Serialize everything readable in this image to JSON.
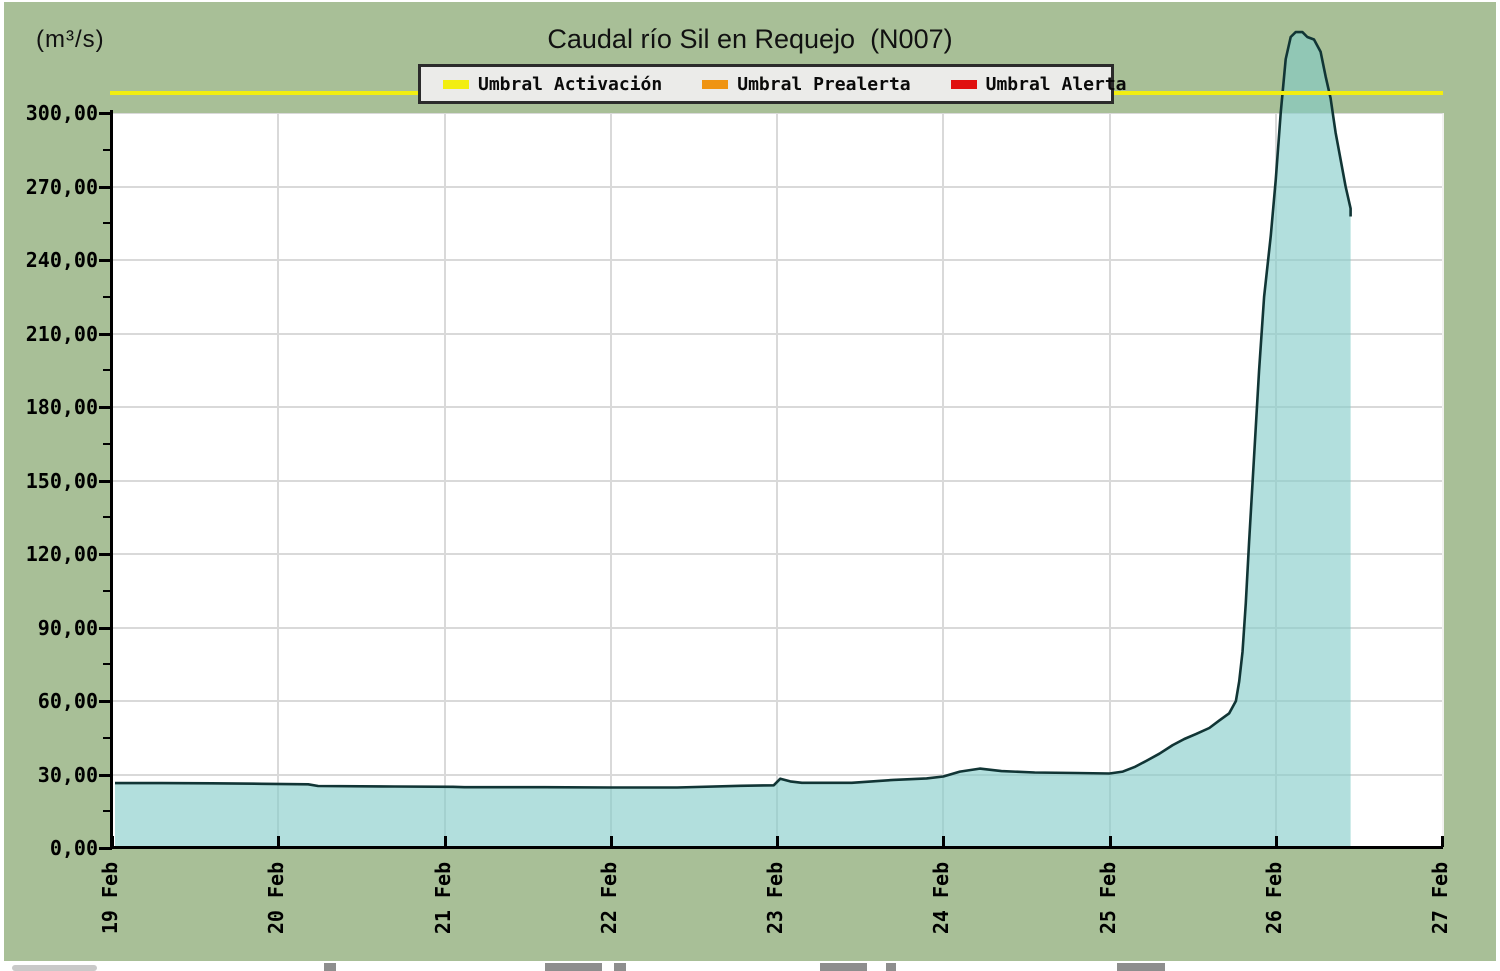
{
  "header": {
    "unit_label": "(m³/s)",
    "title": "Caudal río Sil en Requejo  (N007)"
  },
  "legend": {
    "items": [
      {
        "label": "Umbral Activación",
        "color": "#f2ee11"
      },
      {
        "label": "Umbral Prealerta",
        "color": "#ef9413"
      },
      {
        "label": "Umbral Alerta",
        "color": "#e01010"
      }
    ]
  },
  "colors": {
    "panel_background": "#a8bf97",
    "plot_background": "#ffffff",
    "gridline": "#d9d9d9",
    "area_fill": "rgba(131,203,200,0.62)",
    "series_line": "#113535",
    "threshold_activacion": "#f2ee11",
    "axis": "#000000"
  },
  "chart_data": {
    "type": "area",
    "title": "Caudal río Sil en Requejo  (N007)",
    "xlabel": "",
    "ylabel": "(m³/s)",
    "x_unit": "date (February)",
    "xlim": [
      19,
      27
    ],
    "ylim": [
      0,
      300
    ],
    "grid": true,
    "legend_position": "top",
    "y_tick_step": 30,
    "y_minor_tick_step": 15,
    "y_ticks": [
      {
        "value": 0,
        "label": "0,00"
      },
      {
        "value": 30,
        "label": "30,00"
      },
      {
        "value": 60,
        "label": "60,00"
      },
      {
        "value": 90,
        "label": "90,00"
      },
      {
        "value": 120,
        "label": "120,00"
      },
      {
        "value": 150,
        "label": "150,00"
      },
      {
        "value": 180,
        "label": "180,00"
      },
      {
        "value": 210,
        "label": "210,00"
      },
      {
        "value": 240,
        "label": "240,00"
      },
      {
        "value": 270,
        "label": "270,00"
      },
      {
        "value": 300,
        "label": "300,00"
      }
    ],
    "x_ticks": [
      {
        "day": 19,
        "label": "19 Feb"
      },
      {
        "day": 20,
        "label": "20 Feb"
      },
      {
        "day": 21,
        "label": "21 Feb"
      },
      {
        "day": 22,
        "label": "22 Feb"
      },
      {
        "day": 23,
        "label": "23 Feb"
      },
      {
        "day": 24,
        "label": "24 Feb"
      },
      {
        "day": 25,
        "label": "25 Feb"
      },
      {
        "day": 26,
        "label": "26 Feb"
      },
      {
        "day": 27,
        "label": "27 Feb"
      }
    ],
    "thresholds": [
      {
        "name": "Umbral Activación",
        "value": 308,
        "color": "#f2ee11",
        "visible": true
      },
      {
        "name": "Umbral Prealerta",
        "color": "#ef9413",
        "visible": false
      },
      {
        "name": "Umbral Alerta",
        "color": "#e01010",
        "visible": false
      }
    ],
    "series": [
      {
        "name": "Caudal río Sil en Requejo (N007)",
        "points": [
          [
            19.0,
            26.5
          ],
          [
            19.3,
            26.5
          ],
          [
            19.6,
            26.4
          ],
          [
            19.9,
            26.2
          ],
          [
            20.18,
            26.0
          ],
          [
            20.24,
            25.3
          ],
          [
            20.7,
            25.1
          ],
          [
            21.05,
            25.0
          ],
          [
            21.12,
            24.8
          ],
          [
            21.6,
            24.8
          ],
          [
            22.0,
            24.7
          ],
          [
            22.4,
            24.7
          ],
          [
            22.78,
            25.4
          ],
          [
            22.98,
            25.6
          ],
          [
            23.02,
            28.3
          ],
          [
            23.08,
            27.2
          ],
          [
            23.15,
            26.6
          ],
          [
            23.45,
            26.6
          ],
          [
            23.7,
            27.8
          ],
          [
            23.9,
            28.4
          ],
          [
            24.0,
            29.2
          ],
          [
            24.1,
            31.2
          ],
          [
            24.22,
            32.4
          ],
          [
            24.35,
            31.4
          ],
          [
            24.55,
            30.8
          ],
          [
            24.8,
            30.6
          ],
          [
            25.0,
            30.4
          ],
          [
            25.08,
            31.2
          ],
          [
            25.15,
            33.0
          ],
          [
            25.22,
            35.5
          ],
          [
            25.3,
            38.5
          ],
          [
            25.38,
            42.0
          ],
          [
            25.45,
            44.5
          ],
          [
            25.52,
            46.5
          ],
          [
            25.6,
            49.0
          ],
          [
            25.66,
            52.0
          ],
          [
            25.72,
            55.0
          ],
          [
            25.76,
            60.0
          ],
          [
            25.78,
            68.0
          ],
          [
            25.8,
            80.0
          ],
          [
            25.82,
            100.0
          ],
          [
            25.84,
            125.0
          ],
          [
            25.87,
            160.0
          ],
          [
            25.9,
            195.0
          ],
          [
            25.93,
            225.0
          ],
          [
            25.97,
            250.0
          ],
          [
            26.0,
            273.0
          ],
          [
            26.03,
            300.0
          ],
          [
            26.06,
            322.0
          ],
          [
            26.09,
            331.0
          ],
          [
            26.12,
            333.0
          ],
          [
            26.16,
            333.0
          ],
          [
            26.19,
            331.0
          ],
          [
            26.23,
            330.0
          ],
          [
            26.27,
            325.0
          ],
          [
            26.3,
            315.0
          ],
          [
            26.33,
            306.0
          ],
          [
            26.36,
            292.0
          ],
          [
            26.39,
            281.0
          ],
          [
            26.42,
            270.0
          ],
          [
            26.45,
            261.0
          ]
        ]
      }
    ]
  }
}
